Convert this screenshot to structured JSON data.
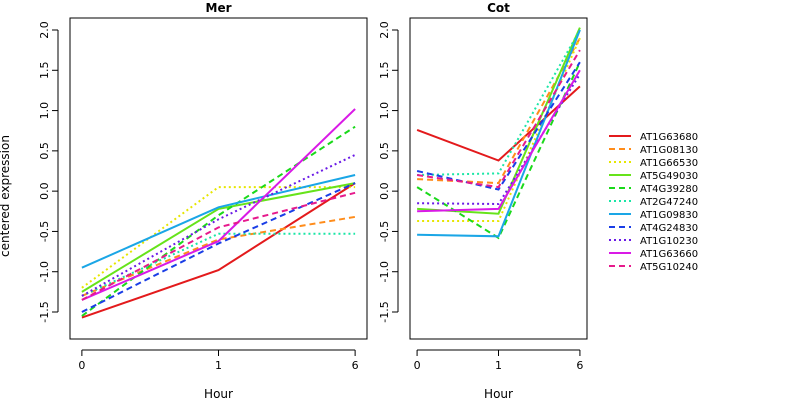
{
  "chart_data": {
    "type": "line",
    "ylabel": "centered expression",
    "xlabel": "Hour",
    "x_ticks": [
      "0",
      "1",
      "6"
    ],
    "y_ticks": [
      "-1.5",
      "-1.0",
      "-0.5",
      "0.0",
      "0.5",
      "1.0",
      "1.5",
      "2.0"
    ],
    "ylim": [
      -1.7,
      2.1
    ],
    "legend_position": "right",
    "series_styles": [
      {
        "color": "#e31a1c",
        "dash": "solid"
      },
      {
        "color": "#ff8c1a",
        "dash": "dashed"
      },
      {
        "color": "#e6e600",
        "dash": "dotted"
      },
      {
        "color": "#66e31a",
        "dash": "solid"
      },
      {
        "color": "#1ad91a",
        "dash": "dashed"
      },
      {
        "color": "#1ae6a6",
        "dash": "dotted"
      },
      {
        "color": "#1aa6e6",
        "dash": "solid"
      },
      {
        "color": "#1a3ee6",
        "dash": "dashed"
      },
      {
        "color": "#6a1ae6",
        "dash": "dotted"
      },
      {
        "color": "#d91ae6",
        "dash": "solid"
      },
      {
        "color": "#e61a8c",
        "dash": "dashed"
      }
    ],
    "legend": [
      "AT1G63680",
      "AT1G08130",
      "AT1G66530",
      "AT5G49030",
      "AT4G39280",
      "AT2G47240",
      "AT1G09830",
      "AT4G24830",
      "AT1G10230",
      "AT1G63660",
      "AT5G10240"
    ],
    "panels": [
      {
        "title": "Mer",
        "series": [
          {
            "name": "AT1G63680",
            "values": [
              -1.57,
              -0.98,
              0.1
            ]
          },
          {
            "name": "AT1G08130",
            "values": [
              -1.3,
              -0.6,
              -0.32
            ]
          },
          {
            "name": "AT1G66530",
            "values": [
              -1.2,
              0.05,
              0.05
            ]
          },
          {
            "name": "AT5G49030",
            "values": [
              -1.25,
              -0.22,
              0.1
            ]
          },
          {
            "name": "AT4G39280",
            "values": [
              -1.55,
              -0.3,
              0.8
            ]
          },
          {
            "name": "AT2G47240",
            "values": [
              -1.3,
              -0.53,
              -0.53
            ]
          },
          {
            "name": "AT1G09830",
            "values": [
              -0.95,
              -0.2,
              0.2
            ]
          },
          {
            "name": "AT4G24830",
            "values": [
              -1.5,
              -0.65,
              0.1
            ]
          },
          {
            "name": "AT1G10230",
            "values": [
              -1.3,
              -0.35,
              0.45
            ]
          },
          {
            "name": "AT1G63660",
            "values": [
              -1.35,
              -0.62,
              1.02
            ]
          },
          {
            "name": "AT5G10240",
            "values": [
              -1.35,
              -0.45,
              -0.02
            ]
          }
        ]
      },
      {
        "title": "Cot",
        "series": [
          {
            "name": "AT1G63680",
            "values": [
              0.76,
              0.38,
              1.3
            ]
          },
          {
            "name": "AT1G08130",
            "values": [
              0.15,
              0.1,
              1.9
            ]
          },
          {
            "name": "AT1G66530",
            "values": [
              -0.37,
              -0.37,
              1.9
            ]
          },
          {
            "name": "AT5G49030",
            "values": [
              -0.22,
              -0.28,
              2.03
            ]
          },
          {
            "name": "AT4G39280",
            "values": [
              0.05,
              -0.58,
              1.6
            ]
          },
          {
            "name": "AT2G47240",
            "values": [
              0.2,
              0.22,
              2.0
            ]
          },
          {
            "name": "AT1G09830",
            "values": [
              -0.54,
              -0.56,
              2.0
            ]
          },
          {
            "name": "AT4G24830",
            "values": [
              0.25,
              0.02,
              1.6
            ]
          },
          {
            "name": "AT1G10230",
            "values": [
              -0.15,
              -0.16,
              1.45
            ]
          },
          {
            "name": "AT1G63660",
            "values": [
              -0.25,
              -0.22,
              1.5
            ]
          },
          {
            "name": "AT5G10240",
            "values": [
              0.2,
              0.05,
              1.75
            ]
          }
        ]
      }
    ]
  }
}
